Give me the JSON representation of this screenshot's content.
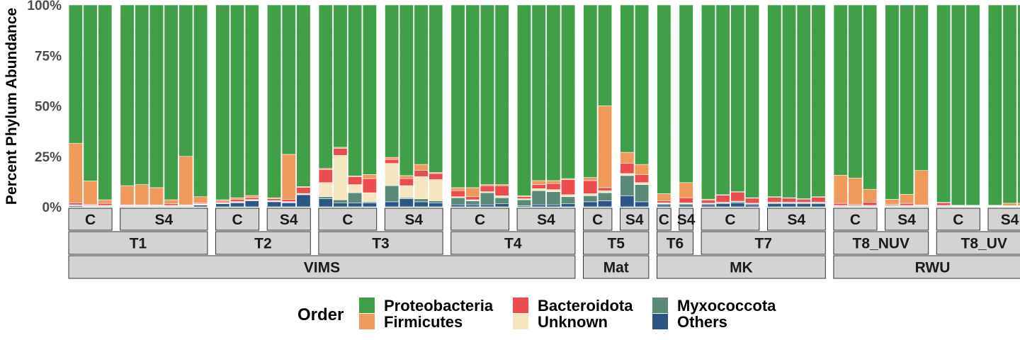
{
  "chart_data": {
    "type": "bar",
    "stacked": true,
    "ylabel": "Percent Phylum Abundance",
    "ylim": [
      0,
      100
    ],
    "yticks": [
      "0%",
      "25%",
      "50%",
      "75%",
      "100%"
    ],
    "grid": true,
    "legend": {
      "title": "Order",
      "position": "bottom",
      "entries": [
        "Proteobacteria",
        "Firmicutes",
        "Bacteroidota",
        "Unknown",
        "Myxococcota",
        "Others"
      ]
    },
    "colors": {
      "Proteobacteria": "#40a047",
      "Firmicutes": "#ef9a5b",
      "Bacteroidota": "#ec4c4c",
      "Unknown": "#f6e6c0",
      "Myxococcota": "#5a8a78",
      "Others": "#2b5582"
    },
    "series_order": [
      "Others",
      "Myxococcota",
      "Unknown",
      "Bacteroidota",
      "Firmicutes",
      "Proteobacteria"
    ],
    "groups": [
      {
        "site": "VIMS",
        "time": "T1",
        "treatment": "C",
        "bars": [
          {
            "Others": 0.5,
            "Myxococcota": 0.3,
            "Unknown": 0.2,
            "Bacteroidota": 1,
            "Firmicutes": 29.5,
            "Proteobacteria": 68.5
          },
          {
            "Others": 0.3,
            "Myxococcota": 0.2,
            "Unknown": 0.3,
            "Bacteroidota": 0.5,
            "Firmicutes": 11.5,
            "Proteobacteria": 87.2
          },
          {
            "Others": 0.3,
            "Myxococcota": 0.2,
            "Unknown": 0.2,
            "Bacteroidota": 1,
            "Firmicutes": 1.8,
            "Proteobacteria": 96.5
          }
        ]
      },
      {
        "site": "VIMS",
        "time": "T1",
        "treatment": "S4",
        "bars": [
          {
            "Others": 0.3,
            "Myxococcota": 0.2,
            "Unknown": 0.2,
            "Bacteroidota": 0.3,
            "Firmicutes": 9.5,
            "Proteobacteria": 89.5
          },
          {
            "Others": 0.3,
            "Myxococcota": 0.2,
            "Unknown": 0.2,
            "Bacteroidota": 0.3,
            "Firmicutes": 10,
            "Proteobacteria": 89
          },
          {
            "Others": 0.3,
            "Myxococcota": 0.2,
            "Unknown": 0.2,
            "Bacteroidota": 0.3,
            "Firmicutes": 8.5,
            "Proteobacteria": 90.5
          },
          {
            "Others": 0.3,
            "Myxococcota": 0.2,
            "Unknown": 0.2,
            "Bacteroidota": 0.8,
            "Firmicutes": 2,
            "Proteobacteria": 96.5
          },
          {
            "Others": 0.3,
            "Myxococcota": 0.2,
            "Unknown": 0.2,
            "Bacteroidota": 0.3,
            "Firmicutes": 24,
            "Proteobacteria": 75
          },
          {
            "Others": 0.8,
            "Myxococcota": 0.3,
            "Unknown": 0.4,
            "Bacteroidota": 0.5,
            "Firmicutes": 3,
            "Proteobacteria": 95
          }
        ]
      },
      {
        "site": "VIMS",
        "time": "T2",
        "treatment": "C",
        "bars": [
          {
            "Others": 1.5,
            "Myxococcota": 0.3,
            "Unknown": 0.3,
            "Bacteroidota": 0.7,
            "Firmicutes": 0.7,
            "Proteobacteria": 96.5
          },
          {
            "Others": 2,
            "Myxococcota": 0.3,
            "Unknown": 0.3,
            "Bacteroidota": 1,
            "Firmicutes": 0.9,
            "Proteobacteria": 95.5
          },
          {
            "Others": 3,
            "Myxococcota": 0.3,
            "Unknown": 0.3,
            "Bacteroidota": 1,
            "Firmicutes": 1,
            "Proteobacteria": 94.4
          }
        ]
      },
      {
        "site": "VIMS",
        "time": "T2",
        "treatment": "S4",
        "bars": [
          {
            "Others": 2.5,
            "Myxococcota": 0.3,
            "Unknown": 0.3,
            "Bacteroidota": 1,
            "Firmicutes": 0.4,
            "Proteobacteria": 95.5
          },
          {
            "Others": 2,
            "Myxococcota": 0.3,
            "Unknown": 0.3,
            "Bacteroidota": 1,
            "Firmicutes": 22.4,
            "Proteobacteria": 74
          },
          {
            "Others": 6,
            "Myxococcota": 0.3,
            "Unknown": 0.3,
            "Bacteroidota": 3,
            "Firmicutes": 0.4,
            "Proteobacteria": 90
          }
        ]
      },
      {
        "site": "VIMS",
        "time": "T3",
        "treatment": "C",
        "bars": [
          {
            "Others": 4,
            "Myxococcota": 1,
            "Unknown": 7,
            "Bacteroidota": 6.5,
            "Firmicutes": 0.5,
            "Proteobacteria": 81
          },
          {
            "Others": 2,
            "Myxococcota": 1.5,
            "Unknown": 22,
            "Bacteroidota": 3.5,
            "Firmicutes": 0.5,
            "Proteobacteria": 70.5
          },
          {
            "Others": 2,
            "Myxococcota": 5,
            "Unknown": 4,
            "Bacteroidota": 4,
            "Firmicutes": 0.3,
            "Proteobacteria": 84.7
          },
          {
            "Others": 2,
            "Myxococcota": 0.5,
            "Unknown": 4.5,
            "Bacteroidota": 7,
            "Firmicutes": 2,
            "Proteobacteria": 84
          }
        ]
      },
      {
        "site": "VIMS",
        "time": "T3",
        "treatment": "S4",
        "bars": [
          {
            "Others": 2.5,
            "Myxococcota": 8,
            "Unknown": 11,
            "Bacteroidota": 2,
            "Firmicutes": 1,
            "Proteobacteria": 75.5
          },
          {
            "Others": 4,
            "Myxococcota": 0.5,
            "Unknown": 6,
            "Bacteroidota": 3.5,
            "Firmicutes": 1.5,
            "Proteobacteria": 84.5
          },
          {
            "Others": 2.5,
            "Myxococcota": 1.5,
            "Unknown": 11,
            "Bacteroidota": 3,
            "Firmicutes": 3,
            "Proteobacteria": 79
          },
          {
            "Others": 2,
            "Myxococcota": 1,
            "Unknown": 10.5,
            "Bacteroidota": 3,
            "Firmicutes": 0.5,
            "Proteobacteria": 83
          }
        ]
      },
      {
        "site": "VIMS",
        "time": "T4",
        "treatment": "C",
        "bars": [
          {
            "Others": 1,
            "Myxococcota": 3.5,
            "Unknown": 0.5,
            "Bacteroidota": 3,
            "Firmicutes": 1.5,
            "Proteobacteria": 90.5
          },
          {
            "Others": 1,
            "Myxococcota": 2,
            "Unknown": 0.5,
            "Bacteroidota": 1.5,
            "Firmicutes": 4.5,
            "Proteobacteria": 90.5
          },
          {
            "Others": 1,
            "Myxococcota": 6,
            "Unknown": 0.5,
            "Bacteroidota": 3,
            "Firmicutes": 0.5,
            "Proteobacteria": 89
          },
          {
            "Others": 1.5,
            "Myxococcota": 3,
            "Unknown": 1,
            "Bacteroidota": 5,
            "Firmicutes": 0.5,
            "Proteobacteria": 89
          }
        ]
      },
      {
        "site": "VIMS",
        "time": "T4",
        "treatment": "S4",
        "bars": [
          {
            "Others": 0.5,
            "Myxococcota": 3,
            "Unknown": 0.5,
            "Bacteroidota": 1,
            "Firmicutes": 0.5,
            "Proteobacteria": 94.5
          },
          {
            "Others": 1,
            "Myxococcota": 7,
            "Unknown": 1,
            "Bacteroidota": 2,
            "Firmicutes": 2,
            "Proteobacteria": 87
          },
          {
            "Others": 1,
            "Myxococcota": 6.5,
            "Unknown": 1,
            "Bacteroidota": 3,
            "Firmicutes": 1.5,
            "Proteobacteria": 87
          },
          {
            "Others": 1.5,
            "Myxococcota": 3.5,
            "Unknown": 1,
            "Bacteroidota": 7.5,
            "Firmicutes": 0.5,
            "Proteobacteria": 86
          }
        ]
      },
      {
        "site": "Mat",
        "time": "T5",
        "treatment": "C",
        "bars": [
          {
            "Others": 2.5,
            "Myxococcota": 3,
            "Unknown": 1,
            "Bacteroidota": 6.5,
            "Firmicutes": 1.5,
            "Proteobacteria": 85.5
          },
          {
            "Others": 3,
            "Myxococcota": 4,
            "Unknown": 1,
            "Bacteroidota": 1.5,
            "Firmicutes": 40.5,
            "Proteobacteria": 50
          }
        ]
      },
      {
        "site": "Mat",
        "time": "T5",
        "treatment": "S4",
        "bars": [
          {
            "Others": 5.5,
            "Myxococcota": 10,
            "Unknown": 1,
            "Bacteroidota": 5,
            "Firmicutes": 5.5,
            "Proteobacteria": 73
          },
          {
            "Others": 2.5,
            "Myxococcota": 8.5,
            "Unknown": 1,
            "Bacteroidota": 4,
            "Firmicutes": 5,
            "Proteobacteria": 79
          }
        ]
      },
      {
        "site": "MK",
        "time": "T6",
        "treatment": "C",
        "bars": [
          {
            "Others": 1,
            "Myxococcota": 0.5,
            "Unknown": 0.5,
            "Bacteroidota": 1,
            "Firmicutes": 3.5,
            "Proteobacteria": 93.5
          }
        ]
      },
      {
        "site": "MK",
        "time": "T6",
        "treatment": "S4",
        "bars": [
          {
            "Others": 1,
            "Myxococcota": 0.5,
            "Unknown": 0.5,
            "Bacteroidota": 2.5,
            "Firmicutes": 7.5,
            "Proteobacteria": 88
          }
        ]
      },
      {
        "site": "MK",
        "time": "T7",
        "treatment": "C",
        "bars": [
          {
            "Others": 1,
            "Myxococcota": 0.5,
            "Unknown": 0.3,
            "Bacteroidota": 1.5,
            "Firmicutes": 0.5,
            "Proteobacteria": 96.2
          },
          {
            "Others": 1.5,
            "Myxococcota": 0.5,
            "Unknown": 0.3,
            "Bacteroidota": 3.5,
            "Firmicutes": 0.2,
            "Proteobacteria": 94
          },
          {
            "Others": 2,
            "Myxococcota": 0.5,
            "Unknown": 0.3,
            "Bacteroidota": 4.5,
            "Firmicutes": 0.2,
            "Proteobacteria": 92.5
          },
          {
            "Others": 1,
            "Myxococcota": 0.5,
            "Unknown": 0.3,
            "Bacteroidota": 2.5,
            "Firmicutes": 0.2,
            "Proteobacteria": 95.5
          }
        ]
      },
      {
        "site": "MK",
        "time": "T7",
        "treatment": "S4",
        "bars": [
          {
            "Others": 1.5,
            "Myxococcota": 0.5,
            "Unknown": 0.3,
            "Bacteroidota": 2.5,
            "Firmicutes": 0.2,
            "Proteobacteria": 95
          },
          {
            "Others": 1.5,
            "Myxococcota": 0.5,
            "Unknown": 0.3,
            "Bacteroidota": 2,
            "Firmicutes": 0.2,
            "Proteobacteria": 95.5
          },
          {
            "Others": 1.5,
            "Myxococcota": 0.5,
            "Unknown": 0.3,
            "Bacteroidota": 1.5,
            "Firmicutes": 0.2,
            "Proteobacteria": 96
          },
          {
            "Others": 1.5,
            "Myxococcota": 0.5,
            "Unknown": 0.3,
            "Bacteroidota": 2.5,
            "Firmicutes": 0.2,
            "Proteobacteria": 95
          }
        ]
      },
      {
        "site": "RWU",
        "time": "T8_NUV",
        "treatment": "C",
        "bars": [
          {
            "Others": 0.3,
            "Myxococcota": 0.2,
            "Unknown": 0.2,
            "Bacteroidota": 1,
            "Firmicutes": 14,
            "Proteobacteria": 84.3
          },
          {
            "Others": 0.3,
            "Myxococcota": 0.2,
            "Unknown": 0.2,
            "Bacteroidota": 0.5,
            "Firmicutes": 13,
            "Proteobacteria": 85.8
          },
          {
            "Others": 0.3,
            "Myxococcota": 0.2,
            "Unknown": 0.2,
            "Bacteroidota": 1.5,
            "Firmicutes": 6.5,
            "Proteobacteria": 91.3
          }
        ]
      },
      {
        "site": "RWU",
        "time": "T8_NUV",
        "treatment": "S4",
        "bars": [
          {
            "Others": 0.3,
            "Myxococcota": 0.2,
            "Unknown": 0.2,
            "Bacteroidota": 0.5,
            "Firmicutes": 2.5,
            "Proteobacteria": 96.3
          },
          {
            "Others": 0.3,
            "Myxococcota": 0.2,
            "Unknown": 0.2,
            "Bacteroidota": 1,
            "Firmicutes": 4.5,
            "Proteobacteria": 93.8
          },
          {
            "Others": 0.3,
            "Myxococcota": 0.2,
            "Unknown": 0.2,
            "Bacteroidota": 0.3,
            "Firmicutes": 17,
            "Proteobacteria": 82
          }
        ]
      },
      {
        "site": "RWU",
        "time": "T8_UV",
        "treatment": "C",
        "bars": [
          {
            "Others": 0.3,
            "Myxococcota": 0.2,
            "Unknown": 0.2,
            "Bacteroidota": 1.3,
            "Firmicutes": 0.2,
            "Proteobacteria": 97.8
          },
          {
            "Others": 0.2,
            "Myxococcota": 0.1,
            "Unknown": 0.1,
            "Bacteroidota": 0.2,
            "Firmicutes": 0.2,
            "Proteobacteria": 99.2
          },
          {
            "Others": 0.2,
            "Myxococcota": 0.1,
            "Unknown": 0.1,
            "Bacteroidota": 0.2,
            "Firmicutes": 0.2,
            "Proteobacteria": 99.2
          }
        ]
      },
      {
        "site": "RWU",
        "time": "T8_UV",
        "treatment": "S4",
        "bars": [
          {
            "Others": 0.2,
            "Myxococcota": 0.1,
            "Unknown": 0.1,
            "Bacteroidota": 0.2,
            "Firmicutes": 0.2,
            "Proteobacteria": 99.2
          },
          {
            "Others": 0.2,
            "Myxococcota": 0.1,
            "Unknown": 0.1,
            "Bacteroidota": 0.2,
            "Firmicutes": 1.2,
            "Proteobacteria": 98.2
          },
          {
            "Others": 0.2,
            "Myxococcota": 0.1,
            "Unknown": 0.1,
            "Bacteroidota": 0.2,
            "Firmicutes": 1.2,
            "Proteobacteria": 98.2
          }
        ]
      }
    ]
  }
}
